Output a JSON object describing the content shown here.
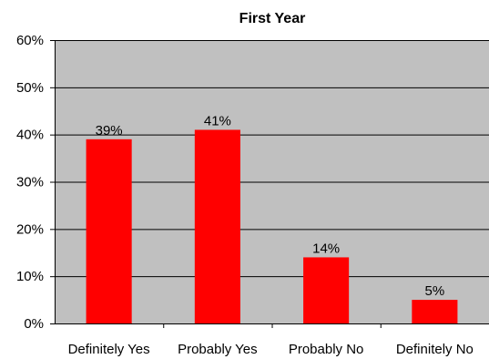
{
  "chart_data": {
    "type": "bar",
    "title": "First Year",
    "categories": [
      "Definitely Yes",
      "Probably Yes",
      "Probably No",
      "Definitely No"
    ],
    "values": [
      39,
      41,
      14,
      5
    ],
    "value_labels": [
      "39%",
      "41%",
      "14%",
      "5%"
    ],
    "y_ticks": [
      0,
      10,
      20,
      30,
      40,
      50,
      60
    ],
    "y_tick_labels": [
      "0%",
      "10%",
      "20%",
      "30%",
      "40%",
      "50%",
      "60%"
    ],
    "xlabel": "",
    "ylabel": "",
    "ylim": [
      0,
      60
    ],
    "grid": true,
    "legend": "none",
    "colors": {
      "bar": "#ff0000",
      "plot_background": "#c0c0c0",
      "gridline": "#000000",
      "axis": "#000000",
      "text": "#000000"
    }
  }
}
